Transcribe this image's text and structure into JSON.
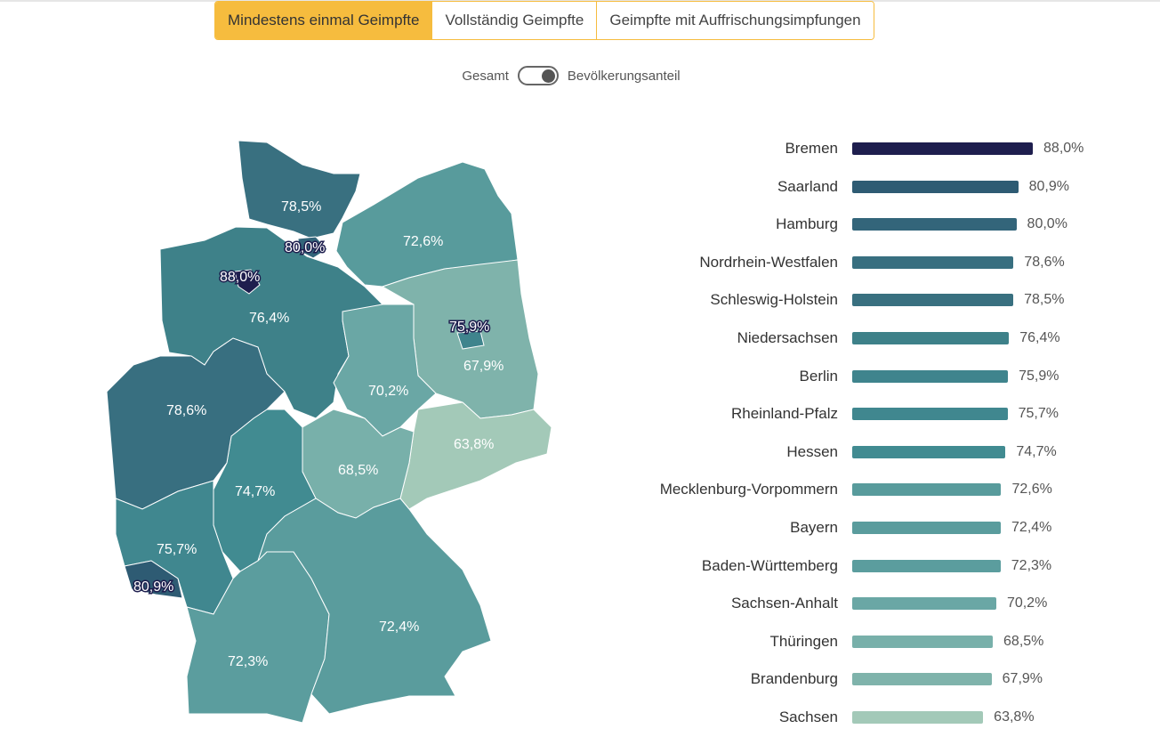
{
  "tabs": [
    {
      "label": "Mindestens einmal Geimpfte",
      "active": true
    },
    {
      "label": "Vollständig Geimpfte",
      "active": false
    },
    {
      "label": "Geimpfte mit Auffrischungsimpfungen",
      "active": false
    }
  ],
  "toggle": {
    "left_label": "Gesamt",
    "right_label": "Bevölkerungsanteil",
    "state": "right"
  },
  "colors": {
    "accent": "#f6bc3e"
  },
  "chart_data": {
    "type": "bar",
    "orientation": "horizontal",
    "categories": [
      "Bremen",
      "Saarland",
      "Hamburg",
      "Nordrhein-Westfalen",
      "Schleswig-Holstein",
      "Niedersachsen",
      "Berlin",
      "Rheinland-Pfalz",
      "Hessen",
      "Mecklenburg-Vorpommern",
      "Bayern",
      "Baden-Württemberg",
      "Sachsen-Anhalt",
      "Thüringen",
      "Brandenburg",
      "Sachsen"
    ],
    "values": [
      88.0,
      80.9,
      80.0,
      78.6,
      78.5,
      76.4,
      75.9,
      75.7,
      74.7,
      72.6,
      72.4,
      72.3,
      70.2,
      68.5,
      67.9,
      63.8
    ],
    "value_labels": [
      "88,0%",
      "80,9%",
      "80,0%",
      "78,6%",
      "78,5%",
      "76,4%",
      "75,9%",
      "75,7%",
      "74,7%",
      "72,6%",
      "72,4%",
      "72,3%",
      "70,2%",
      "68,5%",
      "67,9%",
      "63,8%"
    ],
    "colors": [
      "#1e1e4e",
      "#2e5b73",
      "#33657a",
      "#386f80",
      "#397080",
      "#3e8189",
      "#3f848d",
      "#40878f",
      "#418b91",
      "#589b9c",
      "#5a9c9d",
      "#5b9d9e",
      "#6aa7a5",
      "#78b0aa",
      "#7fb3ab",
      "#a3c9b8"
    ],
    "unit": "%",
    "xlim": [
      0,
      100
    ],
    "grid": false,
    "legend": "none"
  }
}
